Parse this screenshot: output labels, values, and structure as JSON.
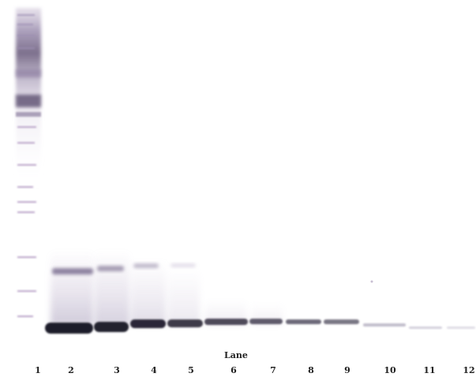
{
  "axis_caption": "Lane",
  "lanes": [
    "1",
    "2",
    "3",
    "4",
    "5",
    "6",
    "7",
    "8",
    "9",
    "10",
    "11",
    "12"
  ],
  "colors": {
    "band_dark": "#1f1d2c",
    "band_mid": "#4a4458",
    "upper_band": "#8a7f9c",
    "ladder_purple": "#b49cc4",
    "ladder_smear": "#6e6080",
    "background": "#ffffff"
  }
}
